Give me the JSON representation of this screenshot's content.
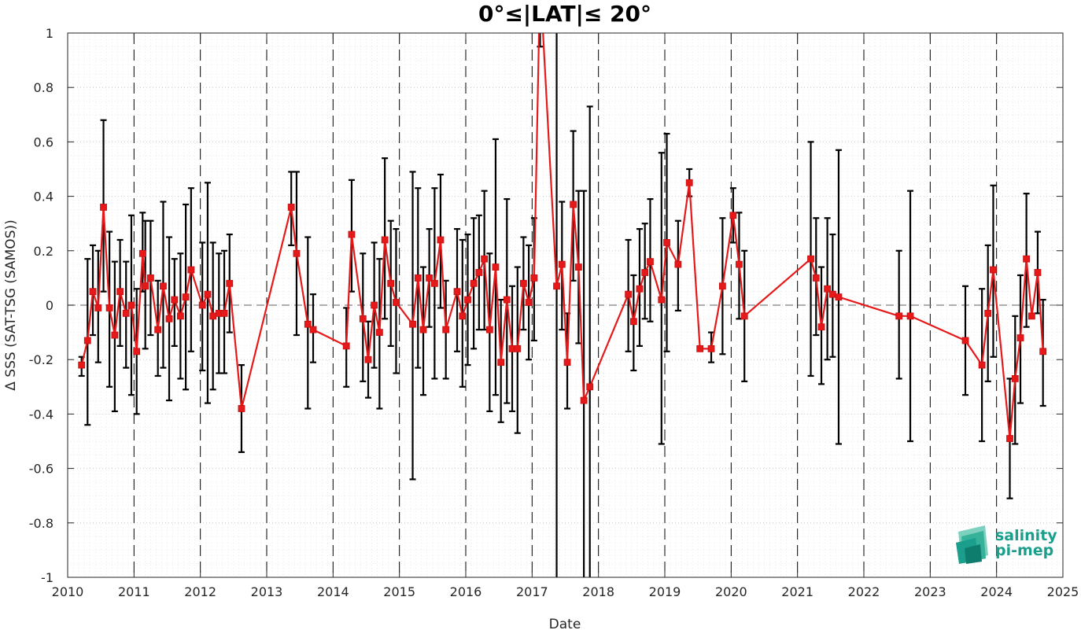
{
  "chart_data": {
    "type": "line",
    "title": "0°≤|LAT|≤ 20°",
    "xlabel": "Date",
    "ylabel": "Δ SSS (SAT-TSG (SAMOS))",
    "xlim": [
      2010,
      2025
    ],
    "ylim": [
      -1,
      1
    ],
    "x_ticks": [
      "2010",
      "2011",
      "2012",
      "2013",
      "2014",
      "2015",
      "2016",
      "2017",
      "2018",
      "2019",
      "2020",
      "2021",
      "2022",
      "2023",
      "2024",
      "2025"
    ],
    "y_ticks": [
      "-1",
      "-0.8",
      "-0.6",
      "-0.4",
      "-0.2",
      "0",
      "0.2",
      "0.4",
      "0.6",
      "0.8",
      "1"
    ],
    "grid": "dotted major and minor",
    "reference_line": 0,
    "colors": {
      "series": "#e6191a",
      "errorbar": "#000000",
      "grid": "#bfbfbf",
      "logo": "#1b9e8c"
    },
    "series": [
      {
        "points": [
          {
            "x": 2010.21,
            "y": -0.22,
            "lo": -0.26,
            "hi": -0.19
          },
          {
            "x": 2010.3,
            "y": -0.13,
            "lo": -0.44,
            "hi": 0.17
          },
          {
            "x": 2010.38,
            "y": 0.05,
            "lo": -0.11,
            "hi": 0.22
          },
          {
            "x": 2010.46,
            "y": -0.01,
            "lo": -0.21,
            "hi": 0.2
          },
          {
            "x": 2010.54,
            "y": 0.36,
            "lo": 0.05,
            "hi": 0.68
          },
          {
            "x": 2010.63,
            "y": -0.01,
            "lo": -0.3,
            "hi": 0.27
          },
          {
            "x": 2010.71,
            "y": -0.11,
            "lo": -0.39,
            "hi": 0.16
          },
          {
            "x": 2010.79,
            "y": 0.05,
            "lo": -0.15,
            "hi": 0.24
          },
          {
            "x": 2010.88,
            "y": -0.03,
            "lo": -0.23,
            "hi": 0.16
          },
          {
            "x": 2010.96,
            "y": 0.0,
            "lo": -0.33,
            "hi": 0.33
          },
          {
            "x": 2011.04,
            "y": -0.17,
            "lo": -0.4,
            "hi": 0.06
          },
          {
            "x": 2011.13,
            "y": 0.19,
            "lo": 0.05,
            "hi": 0.34
          },
          {
            "x": 2011.17,
            "y": 0.07,
            "lo": -0.16,
            "hi": 0.31
          },
          {
            "x": 2011.25,
            "y": 0.1,
            "lo": -0.11,
            "hi": 0.31
          },
          {
            "x": 2011.36,
            "y": -0.09,
            "lo": -0.26,
            "hi": 0.09
          },
          {
            "x": 2011.44,
            "y": 0.07,
            "lo": -0.23,
            "hi": 0.38
          },
          {
            "x": 2011.53,
            "y": -0.05,
            "lo": -0.35,
            "hi": 0.25
          },
          {
            "x": 2011.61,
            "y": 0.02,
            "lo": -0.15,
            "hi": 0.17
          },
          {
            "x": 2011.7,
            "y": -0.04,
            "lo": -0.27,
            "hi": 0.19
          },
          {
            "x": 2011.78,
            "y": 0.03,
            "lo": -0.31,
            "hi": 0.37
          },
          {
            "x": 2011.86,
            "y": 0.13,
            "lo": -0.17,
            "hi": 0.43
          },
          {
            "x": 2012.03,
            "y": 0.0,
            "lo": -0.24,
            "hi": 0.23
          },
          {
            "x": 2012.11,
            "y": 0.04,
            "lo": -0.36,
            "hi": 0.45
          },
          {
            "x": 2012.19,
            "y": -0.04,
            "lo": -0.31,
            "hi": 0.23
          },
          {
            "x": 2012.28,
            "y": -0.03,
            "lo": -0.25,
            "hi": 0.19
          },
          {
            "x": 2012.36,
            "y": -0.03,
            "lo": -0.25,
            "hi": 0.2
          },
          {
            "x": 2012.44,
            "y": 0.08,
            "lo": -0.1,
            "hi": 0.26
          },
          {
            "x": 2012.62,
            "y": -0.38,
            "lo": -0.54,
            "hi": -0.22
          },
          {
            "x": 2013.37,
            "y": 0.36,
            "lo": 0.22,
            "hi": 0.49
          },
          {
            "x": 2013.45,
            "y": 0.19,
            "lo": -0.11,
            "hi": 0.49
          },
          {
            "x": 2013.62,
            "y": -0.07,
            "lo": -0.38,
            "hi": 0.25
          },
          {
            "x": 2013.7,
            "y": -0.09,
            "lo": -0.21,
            "hi": 0.04
          },
          {
            "x": 2014.2,
            "y": -0.15,
            "lo": -0.3,
            "hi": -0.01
          },
          {
            "x": 2014.28,
            "y": 0.26,
            "lo": 0.05,
            "hi": 0.46
          },
          {
            "x": 2014.45,
            "y": -0.05,
            "lo": -0.28,
            "hi": 0.19
          },
          {
            "x": 2014.53,
            "y": -0.2,
            "lo": -0.34,
            "hi": -0.06
          },
          {
            "x": 2014.62,
            "y": 0.0,
            "lo": -0.23,
            "hi": 0.23
          },
          {
            "x": 2014.7,
            "y": -0.1,
            "lo": -0.38,
            "hi": 0.17
          },
          {
            "x": 2014.78,
            "y": 0.24,
            "lo": -0.05,
            "hi": 0.54
          },
          {
            "x": 2014.87,
            "y": 0.08,
            "lo": -0.15,
            "hi": 0.31
          },
          {
            "x": 2014.95,
            "y": 0.01,
            "lo": -0.25,
            "hi": 0.28
          },
          {
            "x": 2015.2,
            "y": -0.07,
            "lo": -0.64,
            "hi": 0.49
          },
          {
            "x": 2015.28,
            "y": 0.1,
            "lo": -0.23,
            "hi": 0.43
          },
          {
            "x": 2015.36,
            "y": -0.09,
            "lo": -0.33,
            "hi": 0.14
          },
          {
            "x": 2015.45,
            "y": 0.1,
            "lo": -0.08,
            "hi": 0.28
          },
          {
            "x": 2015.53,
            "y": 0.08,
            "lo": -0.27,
            "hi": 0.43
          },
          {
            "x": 2015.62,
            "y": 0.24,
            "lo": -0.01,
            "hi": 0.48
          },
          {
            "x": 2015.7,
            "y": -0.09,
            "lo": -0.27,
            "hi": 0.09
          },
          {
            "x": 2015.87,
            "y": 0.05,
            "lo": -0.17,
            "hi": 0.28
          },
          {
            "x": 2015.95,
            "y": -0.04,
            "lo": -0.3,
            "hi": 0.24
          },
          {
            "x": 2016.03,
            "y": 0.02,
            "lo": -0.22,
            "hi": 0.26
          },
          {
            "x": 2016.12,
            "y": 0.08,
            "lo": -0.16,
            "hi": 0.32
          },
          {
            "x": 2016.2,
            "y": 0.12,
            "lo": -0.09,
            "hi": 0.33
          },
          {
            "x": 2016.28,
            "y": 0.17,
            "lo": -0.09,
            "hi": 0.42
          },
          {
            "x": 2016.36,
            "y": -0.09,
            "lo": -0.39,
            "hi": 0.19
          },
          {
            "x": 2016.45,
            "y": 0.14,
            "lo": -0.33,
            "hi": 0.61
          },
          {
            "x": 2016.53,
            "y": -0.21,
            "lo": -0.43,
            "hi": 0.02
          },
          {
            "x": 2016.62,
            "y": 0.02,
            "lo": -0.36,
            "hi": 0.39
          },
          {
            "x": 2016.7,
            "y": -0.16,
            "lo": -0.39,
            "hi": 0.07
          },
          {
            "x": 2016.78,
            "y": -0.16,
            "lo": -0.47,
            "hi": 0.14
          },
          {
            "x": 2016.87,
            "y": 0.08,
            "lo": -0.09,
            "hi": 0.25
          },
          {
            "x": 2016.95,
            "y": 0.01,
            "lo": -0.2,
            "hi": 0.22
          },
          {
            "x": 2017.03,
            "y": 0.1,
            "lo": -0.13,
            "hi": 0.32
          },
          {
            "x": 2017.12,
            "y": 1.2,
            "lo": 0.95,
            "hi": 1.45
          },
          {
            "x": 2017.37,
            "y": 0.07,
            "lo": -1.1,
            "hi": 1.3
          },
          {
            "x": 2017.45,
            "y": 0.15,
            "lo": -0.09,
            "hi": 0.38
          },
          {
            "x": 2017.53,
            "y": -0.21,
            "lo": -0.38,
            "hi": -0.03
          },
          {
            "x": 2017.62,
            "y": 0.37,
            "lo": 0.09,
            "hi": 0.64
          },
          {
            "x": 2017.7,
            "y": 0.14,
            "lo": -0.14,
            "hi": 0.42
          },
          {
            "x": 2017.78,
            "y": -0.35,
            "lo": -1.1,
            "hi": 0.42
          },
          {
            "x": 2017.87,
            "y": -0.3,
            "lo": -1.1,
            "hi": 0.73
          },
          {
            "x": 2018.45,
            "y": 0.04,
            "lo": -0.17,
            "hi": 0.24
          },
          {
            "x": 2018.53,
            "y": -0.06,
            "lo": -0.24,
            "hi": 0.11
          },
          {
            "x": 2018.62,
            "y": 0.06,
            "lo": -0.15,
            "hi": 0.28
          },
          {
            "x": 2018.7,
            "y": 0.12,
            "lo": -0.05,
            "hi": 0.3
          },
          {
            "x": 2018.78,
            "y": 0.16,
            "lo": -0.06,
            "hi": 0.39
          },
          {
            "x": 2018.95,
            "y": 0.02,
            "lo": -0.51,
            "hi": 0.56
          },
          {
            "x": 2019.03,
            "y": 0.23,
            "lo": -0.17,
            "hi": 0.63
          },
          {
            "x": 2019.2,
            "y": 0.15,
            "lo": -0.02,
            "hi": 0.31
          },
          {
            "x": 2019.37,
            "y": 0.45,
            "lo": 0.4,
            "hi": 0.5
          },
          {
            "x": 2019.53,
            "y": -0.16,
            "lo": -0.16,
            "hi": -0.16
          },
          {
            "x": 2019.7,
            "y": -0.16,
            "lo": -0.21,
            "hi": -0.1
          },
          {
            "x": 2019.87,
            "y": 0.07,
            "lo": -0.18,
            "hi": 0.32
          },
          {
            "x": 2020.03,
            "y": 0.33,
            "lo": 0.23,
            "hi": 0.43
          },
          {
            "x": 2020.12,
            "y": 0.15,
            "lo": -0.05,
            "hi": 0.34
          },
          {
            "x": 2020.2,
            "y": -0.04,
            "lo": -0.28,
            "hi": 0.2
          },
          {
            "x": 2021.2,
            "y": 0.17,
            "lo": -0.26,
            "hi": 0.6
          },
          {
            "x": 2021.28,
            "y": 0.1,
            "lo": -0.11,
            "hi": 0.32
          },
          {
            "x": 2021.36,
            "y": -0.08,
            "lo": -0.29,
            "hi": 0.14
          },
          {
            "x": 2021.45,
            "y": 0.06,
            "lo": -0.2,
            "hi": 0.32
          },
          {
            "x": 2021.53,
            "y": 0.04,
            "lo": -0.19,
            "hi": 0.26
          },
          {
            "x": 2021.62,
            "y": 0.03,
            "lo": -0.51,
            "hi": 0.57
          },
          {
            "x": 2022.53,
            "y": -0.04,
            "lo": -0.27,
            "hi": 0.2
          },
          {
            "x": 2022.7,
            "y": -0.04,
            "lo": -0.5,
            "hi": 0.42
          },
          {
            "x": 2023.53,
            "y": -0.13,
            "lo": -0.33,
            "hi": 0.07
          },
          {
            "x": 2023.78,
            "y": -0.22,
            "lo": -0.5,
            "hi": 0.06
          },
          {
            "x": 2023.87,
            "y": -0.03,
            "lo": -0.28,
            "hi": 0.22
          },
          {
            "x": 2023.95,
            "y": 0.13,
            "lo": -0.19,
            "hi": 0.44
          },
          {
            "x": 2024.2,
            "y": -0.49,
            "lo": -0.71,
            "hi": -0.27
          },
          {
            "x": 2024.28,
            "y": -0.27,
            "lo": -0.51,
            "hi": -0.04
          },
          {
            "x": 2024.36,
            "y": -0.12,
            "lo": -0.36,
            "hi": 0.11
          },
          {
            "x": 2024.45,
            "y": 0.17,
            "lo": -0.08,
            "hi": 0.41
          },
          {
            "x": 2024.53,
            "y": -0.04,
            "lo": -0.04,
            "hi": -0.04
          },
          {
            "x": 2024.62,
            "y": 0.12,
            "lo": -0.03,
            "hi": 0.27
          },
          {
            "x": 2024.7,
            "y": -0.17,
            "lo": -0.37,
            "hi": 0.02
          }
        ]
      }
    ]
  },
  "logo": {
    "line1": "salinity",
    "line2": "pi-mep"
  }
}
